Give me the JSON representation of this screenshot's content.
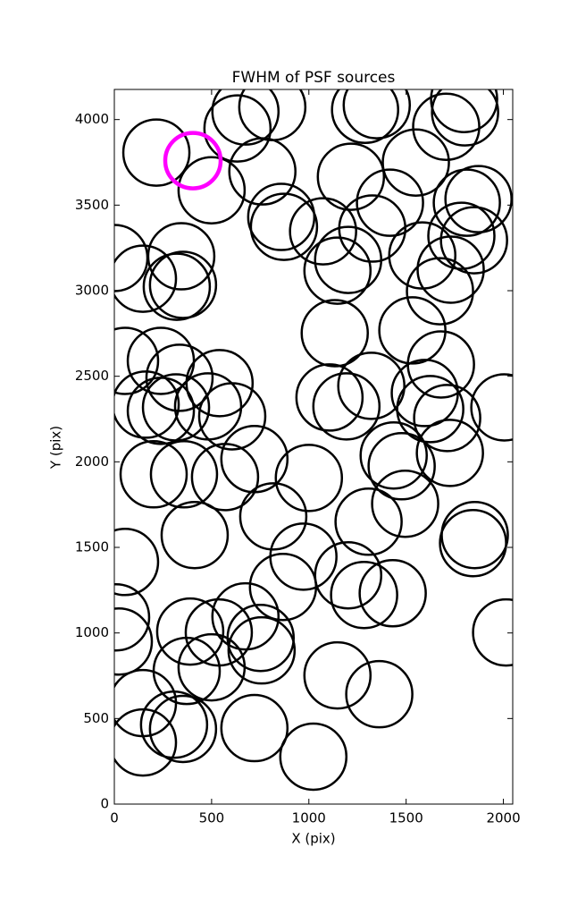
{
  "chart_data": {
    "type": "scatter",
    "title": "FWHM of PSF sources",
    "x_label": "X (pix)",
    "y_label": "Y (pix)",
    "xlim": [
      0,
      2048
    ],
    "ylim": [
      0,
      4176
    ],
    "xticks": [
      0,
      500,
      1000,
      1500,
      2000
    ],
    "yticks": [
      0,
      500,
      1000,
      1500,
      2000,
      2500,
      3000,
      3500,
      4000
    ],
    "color": "#000000",
    "x": [
      216,
      500,
      633,
      674,
      812,
      761,
      858,
      872,
      1073,
      1216,
      1289,
      1349,
      1417,
      1326,
      1202,
      1147,
      1550,
      1706,
      1798,
      1803,
      1872,
      1812,
      1784,
      1849,
      1583,
      1729,
      1674,
      1532,
      1679,
      1596,
      1624,
      1711,
      1725,
      1436,
      1477,
      1495,
      1307,
      1853,
      1844,
      2005,
      2014,
      1431,
      1284,
      1202,
      1362,
      1147,
      1023,
      720,
      972,
      867,
      817,
      1000,
      720,
      606,
      569,
      413,
      358,
      202,
      161,
      239,
      317,
      482,
      541,
      335,
      239,
      55,
      0,
      147,
      344,
      353,
      321,
      55,
      9,
      23,
      147,
      147,
      353,
      307,
      372,
      390,
      500,
      537,
      674,
      752,
      757,
      1133,
      1106,
      1193,
      1321
    ],
    "y": [
      3807,
      3587,
      3948,
      4047,
      4073,
      3697,
      3431,
      3373,
      3347,
      3666,
      4057,
      4084,
      3514,
      3363,
      3180,
      3117,
      3749,
      3958,
      4120,
      4042,
      3535,
      3514,
      3321,
      3295,
      3206,
      3123,
      2997,
      2768,
      2569,
      2402,
      2308,
      2256,
      2052,
      2037,
      1974,
      1755,
      1650,
      1572,
      1525,
      2318,
      1003,
      1232,
      1222,
      1337,
      642,
      752,
      277,
      444,
      1446,
      1269,
      1681,
      1906,
      2016,
      2266,
      1911,
      1572,
      1927,
      1927,
      2334,
      2298,
      2318,
      2324,
      2460,
      2491,
      2590,
      2590,
      3191,
      3070,
      3201,
      3034,
      3023,
      1415,
      1091,
      950,
      590,
      360,
      439,
      464,
      778,
      1008,
      799,
      1003,
      1097,
      971,
      898,
      2752,
      2376,
      2324,
      2444
    ],
    "highlight": {
      "x": 404,
      "y": 3760,
      "color": "#ff00ff"
    }
  }
}
